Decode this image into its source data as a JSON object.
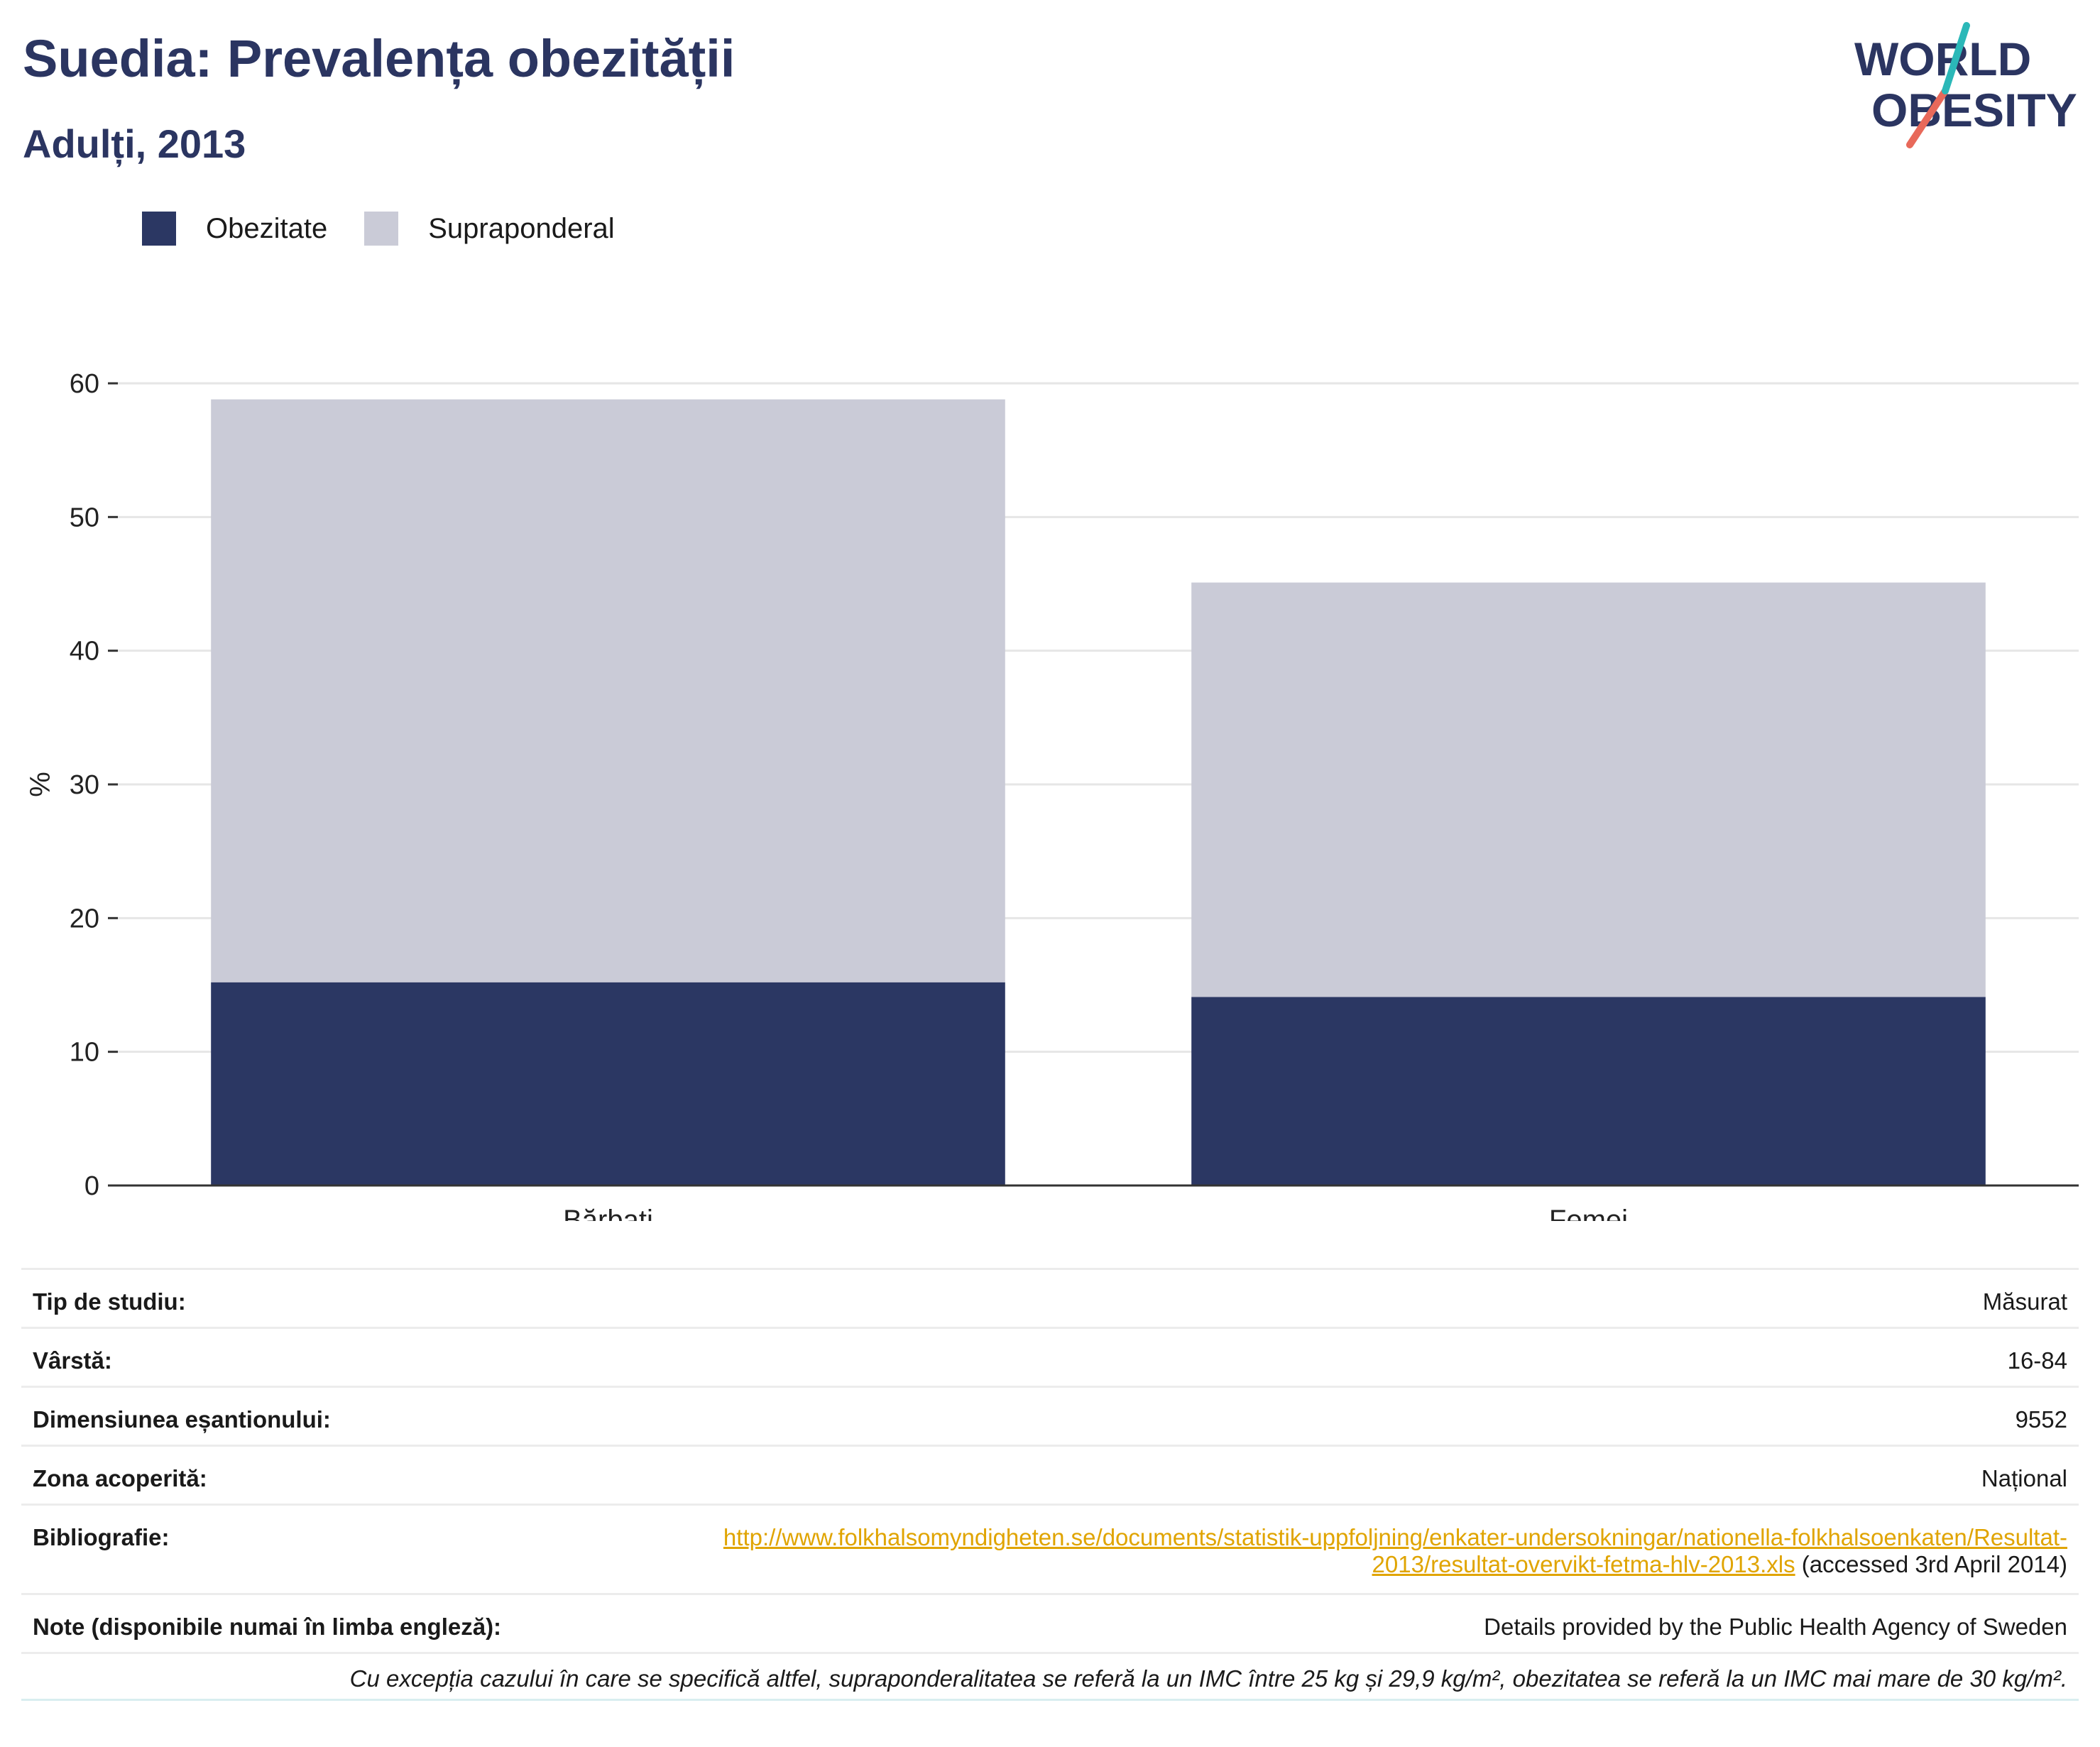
{
  "header": {
    "title": "Suedia: Prevalența obezității",
    "subtitle": "Adulți, 2013"
  },
  "logo": {
    "line1": "WORLD",
    "line2": "OBESITY"
  },
  "colors": {
    "obesity": "#2b3763",
    "overweight": "#cacbd7",
    "title": "#2b3561",
    "link": "#e0a400",
    "logo_teal": "#2bb8b8",
    "logo_coral": "#e8695a"
  },
  "legend": {
    "obesity": "Obezitate",
    "overweight": "Supraponderal"
  },
  "chart_data": {
    "type": "bar",
    "stacked": true,
    "categories": [
      "Bărbați",
      "Femei"
    ],
    "series": [
      {
        "name": "Obezitate",
        "values": [
          15.2,
          14.1
        ]
      },
      {
        "name": "Supraponderal",
        "values": [
          43.6,
          31.0
        ]
      }
    ],
    "totals": [
      58.8,
      45.1
    ],
    "ylabel": "%",
    "ylim": [
      0,
      60
    ],
    "yticks": [
      0,
      10,
      20,
      30,
      40,
      50,
      60
    ],
    "grid": true,
    "legend_position": "top-left"
  },
  "info": {
    "rows": [
      {
        "label": "Tip de studiu:",
        "value": "Măsurat"
      },
      {
        "label": "Vârstă:",
        "value": "16-84"
      },
      {
        "label": "Dimensiunea eșantionului:",
        "value": "9552"
      },
      {
        "label": "Zona acoperită:",
        "value": "Național"
      }
    ],
    "bibliography": {
      "label": "Bibliografie:",
      "link_line1": "http://www.folkhalsomyndigheten.se/documents/statistik-uppfoljning/enkater-undersokningar/nationella-folkhalsoenkaten/Resultat-",
      "link_line2": "2013/resultat-overvikt-fetma-hlv-2013.xls",
      "accessed": " (accessed 3rd April 2014)"
    },
    "notes": {
      "label": "Note (disponibile numai în limba engleză):",
      "value": "Details provided by the Public Health Agency of Sweden"
    },
    "footnote": "Cu excepția cazului în care se specifică altfel, supraponderalitatea se referă la un IMC între 25 kg și 29,9 kg/m², obezitatea se referă la un IMC mai mare de 30 kg/m²."
  }
}
